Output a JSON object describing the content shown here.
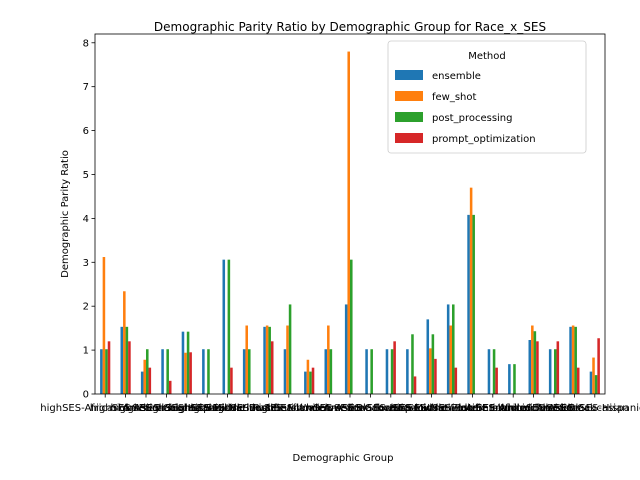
{
  "chart_data": {
    "type": "bar",
    "title": "Demographic Parity Ratio by Demographic Group for Race_x_SES",
    "xlabel": "Demographic Group",
    "ylabel": "Demographic Parity Ratio",
    "ylim": [
      0,
      8.2
    ],
    "yticks": [
      0,
      1,
      2,
      3,
      4,
      5,
      6,
      7,
      8
    ],
    "grid": false,
    "legend": {
      "title": "Method",
      "placement": "top-right"
    },
    "categories": [
      "highSES-African American",
      "highSES-Asian",
      "highSES-Black",
      "highSES-Caucasian",
      "highSES-Hispanic",
      "highSES-Latino",
      "highSES-Middle Eastern",
      "highSES-Native American",
      "highSES-Pacific Islander",
      "highSES-White",
      "lowSES-African American",
      "lowSES-Asian",
      "lowSES-Black",
      "lowSES-Caucasian",
      "lowSES-Hispanic",
      "lowSES-Latino",
      "lowSES-Middle Eastern",
      "lowSES-Native American",
      "lowSES-Pacific Islander",
      "lowSES-White",
      "middleSES-African American",
      "middleSES-Asian",
      "middleSES-Black",
      "middleSES-Caucasian",
      "middleSES-Hispanic"
    ],
    "series": [
      {
        "name": "ensemble",
        "color": "#1f77b4",
        "values": [
          1.02,
          1.53,
          0.51,
          1.02,
          1.42,
          1.02,
          3.06,
          1.02,
          1.53,
          1.02,
          0.51,
          1.02,
          2.04,
          1.02,
          1.02,
          1.02,
          1.7,
          2.04,
          4.08,
          1.02,
          0.68,
          1.23,
          1.02,
          1.53,
          0.51
        ]
      },
      {
        "name": "few_shot",
        "color": "#ff7f0e",
        "values": [
          3.12,
          2.34,
          0.78,
          0.0,
          0.94,
          0.0,
          0.0,
          1.56,
          1.56,
          1.56,
          0.78,
          1.56,
          7.8,
          0.0,
          0.0,
          0.0,
          1.04,
          1.56,
          4.7,
          0.0,
          0.0,
          1.56,
          0.0,
          1.56,
          0.83
        ]
      },
      {
        "name": "post_processing",
        "color": "#2ca02c",
        "values": [
          1.02,
          1.53,
          1.02,
          1.02,
          1.42,
          1.02,
          3.06,
          1.02,
          1.53,
          2.04,
          0.51,
          1.02,
          3.06,
          1.02,
          1.02,
          1.36,
          1.36,
          2.04,
          4.08,
          1.02,
          0.68,
          1.43,
          1.02,
          1.53,
          0.43
        ]
      },
      {
        "name": "prompt_optimization",
        "color": "#d62728",
        "values": [
          1.2,
          1.2,
          0.6,
          0.3,
          0.95,
          0.0,
          0.6,
          0.0,
          1.2,
          0.0,
          0.6,
          0.0,
          0.0,
          0.0,
          1.2,
          0.4,
          0.8,
          0.6,
          0.0,
          0.6,
          0.0,
          1.2,
          1.2,
          0.6,
          1.27
        ]
      }
    ]
  }
}
